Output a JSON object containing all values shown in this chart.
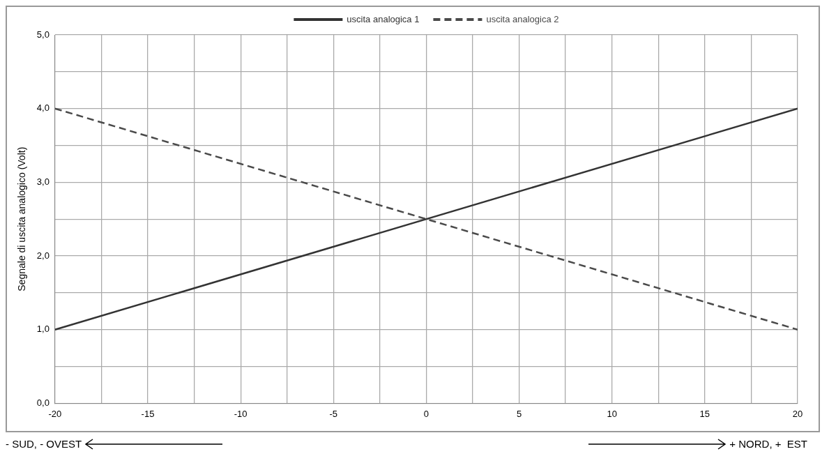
{
  "chart_data": {
    "type": "line",
    "ylabel": "Segnale di uscita analogico (Volt)",
    "x": [
      -20,
      20
    ],
    "series": [
      {
        "name": "uscita analogica 1",
        "color": "#333333",
        "values": [
          1,
          4
        ],
        "line_style": "solid"
      },
      {
        "name": "uscita analogica 2",
        "color": "#4a4a4a",
        "values": [
          4,
          1
        ],
        "line_style": "dashed"
      }
    ],
    "xlim": [
      -20,
      20
    ],
    "xticks": [
      -20,
      {
        "value": -17.5,
        "label": null
      },
      -15,
      {
        "value": -12.5,
        "label": null
      },
      -10,
      {
        "value": -7.5,
        "label": null
      },
      -5,
      {
        "value": -2.5,
        "label": null
      },
      0,
      {
        "value": 2.5,
        "label": null
      },
      5,
      {
        "value": 7.5,
        "label": null
      },
      10,
      {
        "value": 12.5,
        "label": null
      },
      15,
      {
        "value": 17.5,
        "label": null
      },
      20
    ],
    "ylim": [
      0,
      5
    ],
    "yticks": [
      {
        "value": 0,
        "label": "0,0"
      },
      {
        "value": 0.5,
        "label": null
      },
      {
        "value": 1,
        "label": "1,0"
      },
      {
        "value": 1.5,
        "label": null
      },
      {
        "value": 2,
        "label": "2,0"
      },
      {
        "value": 2.5,
        "label": null
      },
      {
        "value": 3,
        "label": "3,0"
      },
      {
        "value": 3.5,
        "label": null
      },
      {
        "value": 4,
        "label": "4,0"
      },
      {
        "value": 4.5,
        "label": null
      },
      {
        "value": 5,
        "label": "5,0"
      }
    ],
    "grid": true,
    "legend": "top",
    "marker": "none",
    "annotations": [
      "- SUD, - OVEST",
      "+ NORD, +  EST"
    ]
  }
}
